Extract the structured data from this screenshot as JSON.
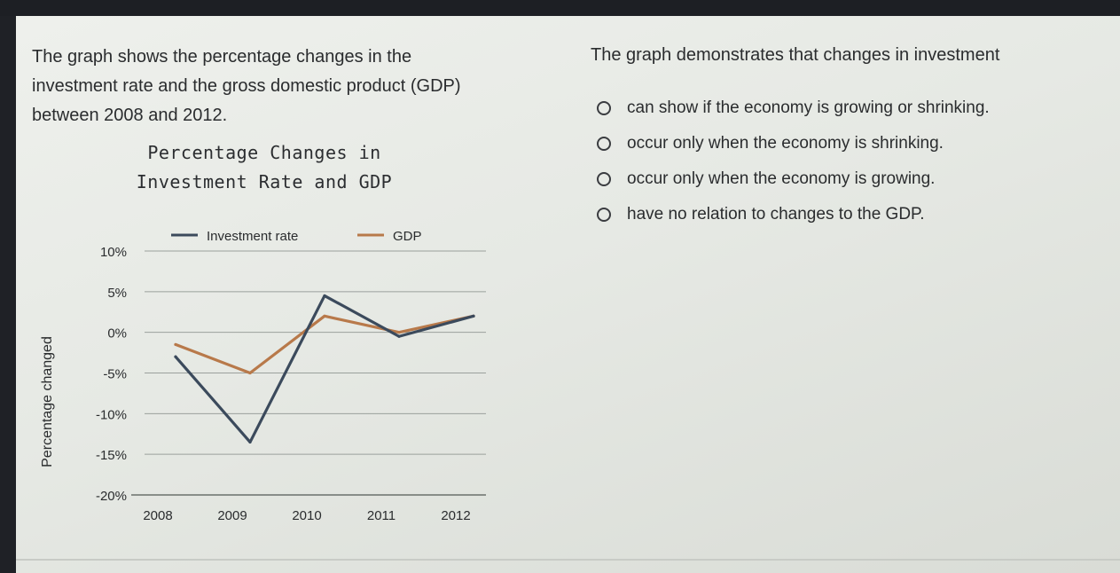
{
  "prompt": {
    "line1": "The graph shows the percentage changes in the",
    "line2": "investment rate and the gross domestic product (GDP)",
    "line3": "between 2008 and 2012."
  },
  "question": {
    "text": "The graph demonstrates that changes in investment",
    "options": [
      "can show if the economy is growing or shrinking.",
      "occur only when the economy is shrinking.",
      "occur only when the economy is growing.",
      "have no relation to changes to the GDP."
    ]
  },
  "chart_data": {
    "type": "line",
    "title_line1": "Percentage Changes in",
    "title_line2": "Investment Rate and GDP",
    "ylabel": "Percentage changed",
    "xlabel": "",
    "categories": [
      "2008",
      "2009",
      "2010",
      "2011",
      "2012"
    ],
    "y_ticks": [
      "10%",
      "5%",
      "0%",
      "-5%",
      "-10%",
      "-15%",
      "-20%"
    ],
    "ylim": [
      -20,
      10
    ],
    "grid": true,
    "legend_position": "top",
    "series": [
      {
        "name": "Investment rate",
        "color": "#3b4a5c",
        "values": [
          -3,
          -13.5,
          4.5,
          -0.5,
          2
        ]
      },
      {
        "name": "GDP",
        "color": "#b8794a",
        "values": [
          -1.5,
          -5,
          2,
          0,
          2
        ]
      }
    ]
  }
}
